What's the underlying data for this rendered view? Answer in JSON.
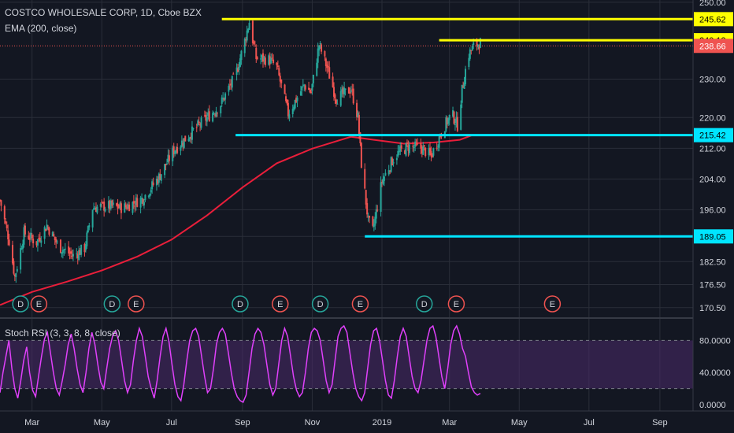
{
  "legend": {
    "symbol": "COSTCO WHOLESALE CORP, 1D, Cboe BZX",
    "ema": "EMA (200, close)",
    "rsi": "Stoch RSI (3, 3, 8, 8, close)"
  },
  "colors": {
    "background": "#131722",
    "grid": "#2a2e39",
    "up_candle": "#26a69a",
    "down_candle": "#ef5350",
    "ema": "#e91e3a",
    "resistance": "#ffff00",
    "support": "#00e5ff",
    "stoch_rsi": "#e040fb",
    "rsi_band": "#4a2a6a",
    "dividend_marker": "#26a69a",
    "earnings_marker": "#ef5350"
  },
  "chart_data": [
    {
      "type": "candlestick",
      "ylim": [
        168,
        250.6
      ],
      "price_ticks": [
        "250.00",
        "230.00",
        "220.00",
        "212.00",
        "204.00",
        "196.00",
        "189.05",
        "182.50",
        "176.50",
        "170.50"
      ],
      "x_tick_labels": [
        "Mar",
        "May",
        "Jul",
        "Sep",
        "Nov",
        "2019",
        "Mar",
        "May",
        "Jul",
        "Sep"
      ],
      "x_tick_dates": [
        "2018-03-01",
        "2018-05-01",
        "2018-07-01",
        "2018-09-01",
        "2018-11-01",
        "2019-01-01",
        "2019-03-01",
        "2019-05-01",
        "2019-07-01",
        "2019-09-01"
      ],
      "xlim": [
        "2018-02-01",
        "2019-09-30"
      ],
      "horizontal_levels": [
        {
          "value": 245.62,
          "label": "245.62",
          "kind": "resistance",
          "from_date": "2018-08-14"
        },
        {
          "value": 240.13,
          "label": "240.13",
          "kind": "resistance",
          "from_date": "2019-02-20"
        },
        {
          "value": 215.42,
          "label": "215.42",
          "kind": "support",
          "from_date": "2018-08-26"
        },
        {
          "value": 189.05,
          "label": "189.05",
          "kind": "support",
          "from_date": "2018-12-17"
        }
      ],
      "last_price": {
        "value": 238.66,
        "label": "238.66"
      },
      "ema_200": [
        {
          "date": "2018-02-01",
          "value": 171.2
        },
        {
          "date": "2018-03-01",
          "value": 174.6
        },
        {
          "date": "2018-04-01",
          "value": 177.3
        },
        {
          "date": "2018-05-01",
          "value": 180.2
        },
        {
          "date": "2018-06-01",
          "value": 183.8
        },
        {
          "date": "2018-07-01",
          "value": 188.2
        },
        {
          "date": "2018-08-01",
          "value": 194.5
        },
        {
          "date": "2018-09-01",
          "value": 201.8
        },
        {
          "date": "2018-10-01",
          "value": 208.1
        },
        {
          "date": "2018-11-01",
          "value": 211.9
        },
        {
          "date": "2018-12-05",
          "value": 215.0
        },
        {
          "date": "2018-12-25",
          "value": 214.2
        },
        {
          "date": "2019-01-20",
          "value": 213.2
        },
        {
          "date": "2019-02-15",
          "value": 213.5
        },
        {
          "date": "2019-03-10",
          "value": 214.2
        },
        {
          "date": "2019-03-20",
          "value": 215.3
        }
      ],
      "price_path": [
        {
          "date": "2018-02-01",
          "value": 198.5
        },
        {
          "date": "2018-02-09",
          "value": 188.0
        },
        {
          "date": "2018-02-14",
          "value": 178.5
        },
        {
          "date": "2018-02-22",
          "value": 190.0
        },
        {
          "date": "2018-03-05",
          "value": 187.5
        },
        {
          "date": "2018-03-14",
          "value": 192.0
        },
        {
          "date": "2018-03-24",
          "value": 186.5
        },
        {
          "date": "2018-04-06",
          "value": 184.0
        },
        {
          "date": "2018-04-16",
          "value": 186.0
        },
        {
          "date": "2018-04-23",
          "value": 196.5
        },
        {
          "date": "2018-05-05",
          "value": 197.0
        },
        {
          "date": "2018-05-20",
          "value": 196.5
        },
        {
          "date": "2018-06-06",
          "value": 199.0
        },
        {
          "date": "2018-06-20",
          "value": 204.5
        },
        {
          "date": "2018-07-03",
          "value": 211.5
        },
        {
          "date": "2018-07-25",
          "value": 218.0
        },
        {
          "date": "2018-08-12",
          "value": 223.0
        },
        {
          "date": "2018-08-26",
          "value": 231.0
        },
        {
          "date": "2018-09-03",
          "value": 240.0
        },
        {
          "date": "2018-09-07",
          "value": 245.0
        },
        {
          "date": "2018-09-13",
          "value": 235.5
        },
        {
          "date": "2018-09-25",
          "value": 235.0
        },
        {
          "date": "2018-10-01",
          "value": 233.0
        },
        {
          "date": "2018-10-11",
          "value": 221.0
        },
        {
          "date": "2018-10-25",
          "value": 228.5
        },
        {
          "date": "2018-10-31",
          "value": 226.5
        },
        {
          "date": "2018-11-07",
          "value": 239.0
        },
        {
          "date": "2018-11-14",
          "value": 233.0
        },
        {
          "date": "2018-11-22",
          "value": 225.0
        },
        {
          "date": "2018-11-28",
          "value": 226.0
        },
        {
          "date": "2018-12-05",
          "value": 227.5
        },
        {
          "date": "2018-12-11",
          "value": 220.0
        },
        {
          "date": "2018-12-14",
          "value": 208.0
        },
        {
          "date": "2018-12-20",
          "value": 193.0
        },
        {
          "date": "2018-12-24",
          "value": 190.5
        },
        {
          "date": "2019-01-01",
          "value": 203.5
        },
        {
          "date": "2019-01-12",
          "value": 210.0
        },
        {
          "date": "2019-01-24",
          "value": 212.5
        },
        {
          "date": "2019-02-05",
          "value": 212.0
        },
        {
          "date": "2019-02-13",
          "value": 210.0
        },
        {
          "date": "2019-02-24",
          "value": 217.5
        },
        {
          "date": "2019-03-03",
          "value": 221.0
        },
        {
          "date": "2019-03-08",
          "value": 218.0
        },
        {
          "date": "2019-03-12",
          "value": 227.0
        },
        {
          "date": "2019-03-17",
          "value": 236.0
        },
        {
          "date": "2019-03-22",
          "value": 238.5
        },
        {
          "date": "2019-03-28",
          "value": 239.5
        }
      ],
      "events": [
        {
          "label": "D",
          "kind": "dividend",
          "date": "2018-02-19"
        },
        {
          "label": "E",
          "kind": "earnings",
          "date": "2018-03-07"
        },
        {
          "label": "D",
          "kind": "dividend",
          "date": "2018-05-10"
        },
        {
          "label": "E",
          "kind": "earnings",
          "date": "2018-05-31"
        },
        {
          "label": "D",
          "kind": "dividend",
          "date": "2018-08-30"
        },
        {
          "label": "E",
          "kind": "earnings",
          "date": "2018-10-04"
        },
        {
          "label": "D",
          "kind": "dividend",
          "date": "2018-11-08"
        },
        {
          "label": "E",
          "kind": "earnings",
          "date": "2018-12-13"
        },
        {
          "label": "D",
          "kind": "dividend",
          "date": "2019-02-07"
        },
        {
          "label": "E",
          "kind": "earnings",
          "date": "2019-03-07"
        },
        {
          "label": "E",
          "kind": "earnings",
          "date": "2019-05-30"
        }
      ]
    },
    {
      "type": "line",
      "ylim": [
        0,
        100
      ],
      "y_ticks": [
        "80.0000",
        "40.0000",
        "0.0000"
      ],
      "band": [
        20,
        80
      ],
      "values": [
        15,
        40,
        60,
        80,
        45,
        20,
        8,
        30,
        55,
        72,
        40,
        18,
        10,
        35,
        60,
        82,
        90,
        65,
        40,
        20,
        12,
        30,
        50,
        75,
        88,
        70,
        45,
        25,
        15,
        40,
        70,
        90,
        75,
        50,
        28,
        20,
        45,
        70,
        86,
        92,
        80,
        55,
        30,
        15,
        25,
        55,
        80,
        95,
        85,
        60,
        35,
        20,
        8,
        30,
        60,
        85,
        95,
        78,
        50,
        25,
        10,
        5,
        25,
        55,
        80,
        92,
        95,
        85,
        60,
        35,
        15,
        20,
        45,
        75,
        90,
        95,
        88,
        65,
        40,
        20,
        10,
        5,
        3,
        12,
        40,
        70,
        88,
        95,
        90,
        75,
        50,
        25,
        12,
        20,
        50,
        80,
        95,
        85,
        60,
        35,
        18,
        10,
        15,
        40,
        70,
        90,
        95,
        92,
        80,
        55,
        30,
        15,
        25,
        55,
        85,
        95,
        98,
        90,
        65,
        40,
        20,
        10,
        5,
        15,
        45,
        75,
        92,
        95,
        80,
        55,
        30,
        12,
        8,
        30,
        60,
        85,
        95,
        85,
        60,
        35,
        20,
        15,
        30,
        55,
        80,
        95,
        98,
        85,
        60,
        35,
        20,
        45,
        75,
        92,
        98,
        88,
        70,
        60,
        40,
        22,
        15,
        12,
        14
      ]
    }
  ]
}
